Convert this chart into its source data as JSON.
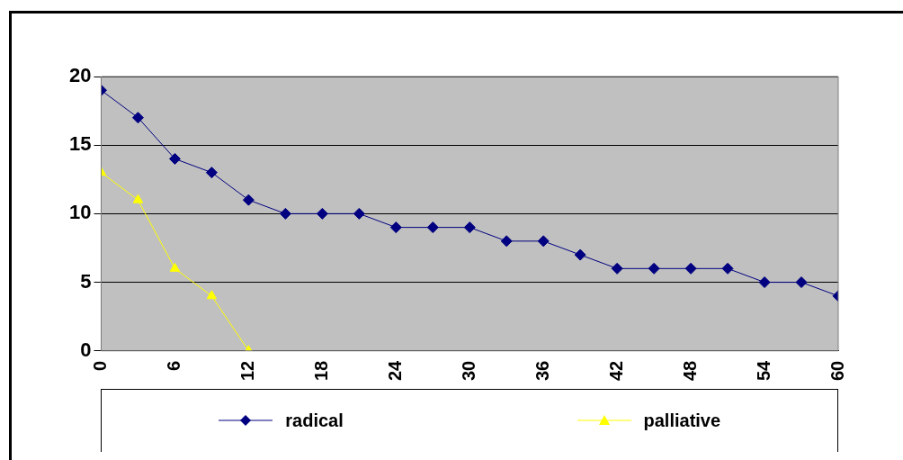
{
  "chart_data": {
    "type": "line",
    "x": [
      0,
      3,
      6,
      9,
      12,
      15,
      18,
      21,
      24,
      27,
      30,
      33,
      36,
      39,
      42,
      45,
      48,
      51,
      54,
      57,
      60
    ],
    "series": [
      {
        "name": "radical",
        "color": "#000080",
        "marker": "diamond",
        "values": [
          19,
          17,
          14,
          13,
          11,
          10,
          10,
          10,
          9,
          9,
          9,
          8,
          8,
          7,
          6,
          6,
          6,
          6,
          5,
          5,
          4
        ]
      },
      {
        "name": "palliative",
        "color": "#ffff00",
        "marker": "triangle",
        "x": [
          0,
          3,
          6,
          9,
          12
        ],
        "values": [
          13,
          11,
          6,
          4,
          0
        ]
      }
    ],
    "xlim": [
      0,
      60
    ],
    "xticks": [
      0,
      6,
      12,
      18,
      24,
      30,
      36,
      42,
      48,
      54,
      60
    ],
    "ylim": [
      0,
      20
    ],
    "yticks": [
      0,
      5,
      10,
      15,
      20
    ],
    "grid": "y",
    "legend": "bottom"
  }
}
